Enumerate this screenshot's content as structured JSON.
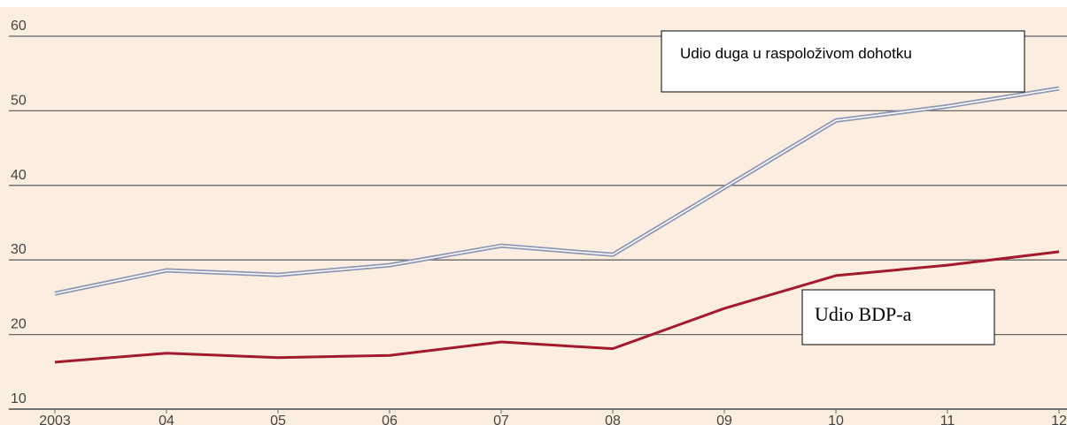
{
  "chart_data": {
    "type": "line",
    "categories": [
      "2003",
      "04",
      "05",
      "06",
      "07",
      "08",
      "09",
      "10",
      "11",
      "12"
    ],
    "series": [
      {
        "name": "Udio duga u raspoloživom dohotku",
        "color": "#8e96b8",
        "values": [
          25.5,
          28.6,
          28.0,
          29.3,
          31.9,
          30.7,
          39.7,
          48.7,
          50.6,
          53.0
        ]
      },
      {
        "name": "Udio BDP-a",
        "color": "#a3192e",
        "values": [
          16.3,
          17.5,
          16.9,
          17.2,
          19.0,
          18.1,
          23.5,
          27.9,
          29.3,
          31.1
        ]
      }
    ],
    "ylim": [
      10,
      60
    ],
    "yticks": [
      10,
      20,
      30,
      40,
      50,
      60
    ],
    "grid": true
  }
}
